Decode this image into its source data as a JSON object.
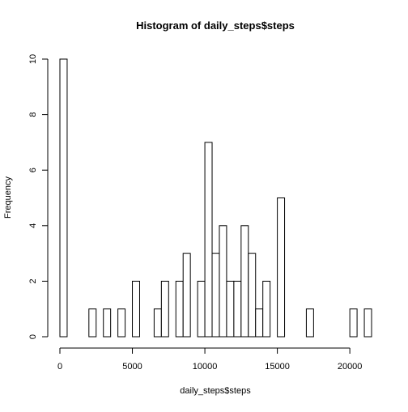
{
  "chart_data": {
    "type": "bar",
    "subtype": "histogram",
    "title": "Histogram of daily_steps$steps",
    "xlabel": "daily_steps$steps",
    "ylabel": "Frequency",
    "bin_width": 500,
    "bin_start": 0,
    "counts": [
      10,
      0,
      0,
      0,
      1,
      0,
      1,
      0,
      1,
      0,
      2,
      0,
      0,
      1,
      2,
      0,
      2,
      3,
      0,
      2,
      7,
      3,
      4,
      2,
      2,
      4,
      3,
      1,
      2,
      0,
      5,
      0,
      0,
      0,
      1,
      0,
      0,
      0,
      0,
      0,
      1,
      0,
      1
    ],
    "xlim": [
      0,
      21500
    ],
    "ylim": [
      0,
      10
    ],
    "x_ticks": [
      0,
      5000,
      10000,
      15000,
      20000
    ],
    "x_tick_labels": [
      "0",
      "5000",
      "10000",
      "15000",
      "20000"
    ],
    "y_ticks": [
      0,
      2,
      4,
      6,
      8,
      10
    ],
    "y_tick_labels": [
      "0",
      "2",
      "4",
      "6",
      "8",
      "10"
    ],
    "grid": false,
    "legend": "none",
    "bar_fill": "#ffffff",
    "bar_stroke": "#000000"
  }
}
